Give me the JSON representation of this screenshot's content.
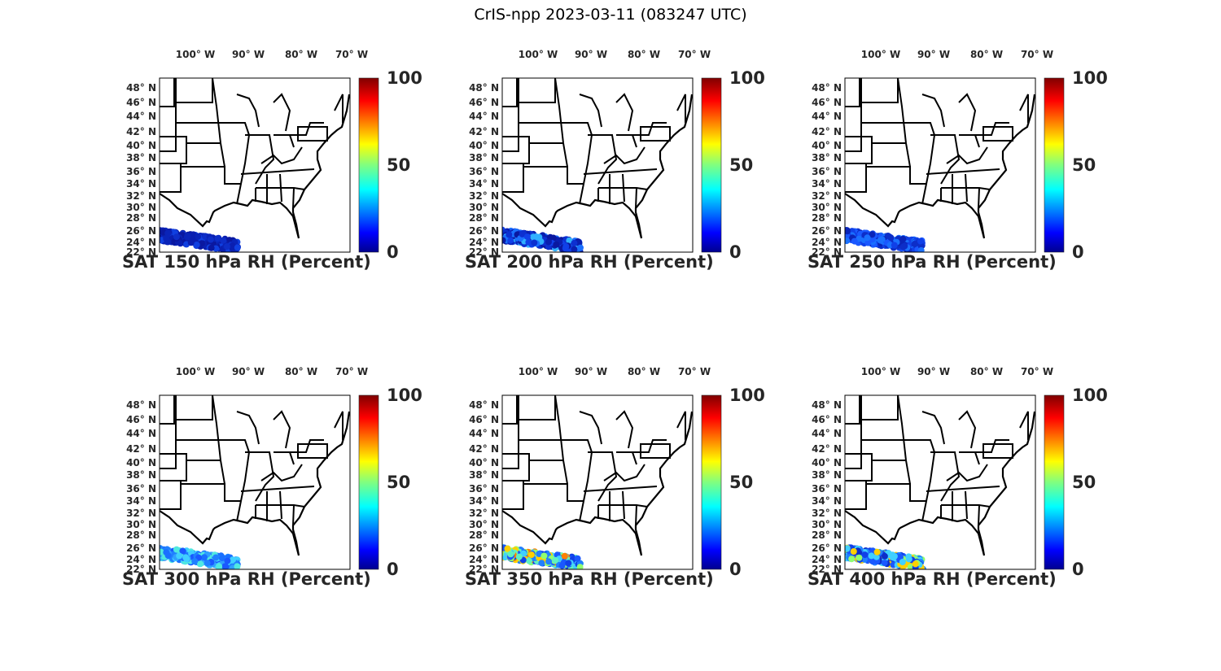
{
  "figure_title": "CrIS-npp 2023-03-11 (083247 UTC)",
  "lon_ticks": [
    "100° W",
    "90° W",
    "80° W",
    "70° W"
  ],
  "lat_ticks": [
    "48° N",
    "46° N",
    "44° N",
    "42° N",
    "40° N",
    "38° N",
    "36° N",
    "34° N",
    "32° N",
    "30° N",
    "28° N",
    "26° N",
    "24° N",
    "22° N"
  ],
  "colorbar": {
    "colormap": "jet",
    "range": [
      0,
      100
    ],
    "ticks": [
      "100",
      "50",
      "0"
    ]
  },
  "panels": [
    {
      "title": "SAT 150 hPa RH (Percent)",
      "swath_colors": [
        "#0a1fb0",
        "#0d2ec8",
        "#0a18a0",
        "#1040e0",
        "#0a24b8"
      ]
    },
    {
      "title": "SAT 200 hPa RH (Percent)",
      "swath_colors": [
        "#0a1fb0",
        "#0d30d0",
        "#1040e8",
        "#0a18a0",
        "#1a70ff",
        "#30b0ff"
      ]
    },
    {
      "title": "SAT 250 hPa RH (Percent)",
      "swath_colors": [
        "#0d2ec8",
        "#1040e8",
        "#1a58ff",
        "#0a24b8",
        "#1a70ff"
      ]
    },
    {
      "title": "SAT 300 hPa RH (Percent)",
      "swath_colors": [
        "#1a70ff",
        "#30a0ff",
        "#40d0ff",
        "#1a58ff",
        "#50e8e0",
        "#2080ff"
      ]
    },
    {
      "title": "SAT 350 hPa RH (Percent)",
      "swath_colors": [
        "#1a58ff",
        "#2080ff",
        "#40d0ff",
        "#90ff70",
        "#ffd000",
        "#ff8000",
        "#1040e8",
        "#60f0c0"
      ]
    },
    {
      "title": "SAT 400 hPa RH (Percent)",
      "swath_colors": [
        "#1a58ff",
        "#1040e8",
        "#40d0ff",
        "#90ff70",
        "#ffd000",
        "#2080ff",
        "#0d2ec8"
      ]
    }
  ]
}
